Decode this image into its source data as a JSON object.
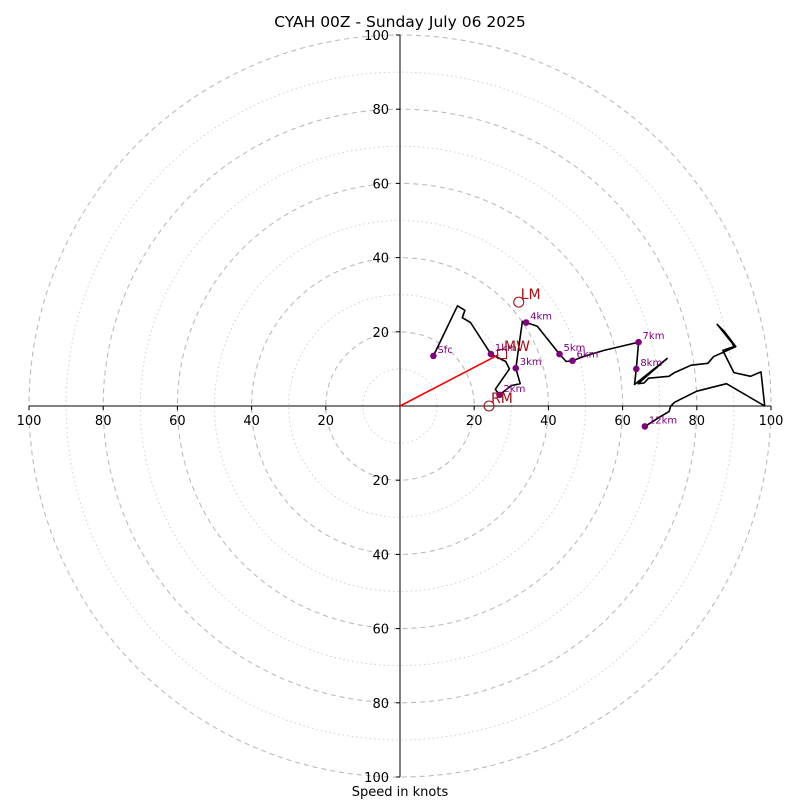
{
  "chart_data": {
    "type": "line",
    "title": "CYAH 00Z - Sunday July 06 2025",
    "xlabel": "Speed in knots",
    "ylabel": "",
    "xlim": [
      -100,
      100
    ],
    "ylim": [
      -100,
      100
    ],
    "rings": {
      "dashed_every": 20,
      "dotted_every": 10,
      "dashed_color": "#bbbbbb",
      "dotted_color": "#cccccc"
    },
    "tick_labels": {
      "left": [
        "100",
        "80",
        "60",
        "40",
        "20"
      ],
      "right": [
        "20",
        "40",
        "60",
        "80",
        "100"
      ],
      "top": [
        "20",
        "40",
        "60",
        "80",
        "100"
      ],
      "bottom": [
        "20",
        "40",
        "60",
        "80",
        "100"
      ]
    },
    "hodograph": {
      "color": "#000000",
      "points": [
        [
          9,
          13.5
        ],
        [
          15.5,
          27
        ],
        [
          17.5,
          25.8
        ],
        [
          16.8,
          23.8
        ],
        [
          19,
          22.5
        ],
        [
          24.5,
          14
        ],
        [
          28.5,
          12
        ],
        [
          29.5,
          10
        ],
        [
          25.7,
          4.5
        ],
        [
          26.8,
          3
        ],
        [
          30,
          5.5
        ],
        [
          32.4,
          6
        ],
        [
          31.2,
          10.2
        ],
        [
          33,
          22.8
        ],
        [
          34,
          22.5
        ],
        [
          37,
          21.5
        ],
        [
          43,
          14
        ],
        [
          44.8,
          12
        ],
        [
          46.5,
          12.2
        ],
        [
          50,
          13.5
        ],
        [
          55,
          15
        ],
        [
          64.3,
          17.2
        ],
        [
          63.7,
          10
        ],
        [
          63.2,
          5.8
        ],
        [
          72,
          12.8
        ],
        [
          67,
          8.5
        ],
        [
          64.2,
          6
        ],
        [
          65.8,
          6.2
        ],
        [
          67,
          7.5
        ],
        [
          72.5,
          8
        ],
        [
          74,
          9
        ],
        [
          78.5,
          11
        ],
        [
          83,
          11.5
        ],
        [
          84.5,
          13.3
        ],
        [
          90.5,
          16
        ],
        [
          87.5,
          20
        ],
        [
          85.5,
          22
        ],
        [
          89.5,
          17
        ],
        [
          90,
          16
        ],
        [
          87,
          15
        ],
        [
          90,
          9
        ],
        [
          94.5,
          8
        ],
        [
          97.3,
          9.2
        ],
        [
          98.3,
          0
        ],
        [
          88,
          6
        ],
        [
          80,
          4
        ],
        [
          74,
          1
        ],
        [
          73,
          0
        ],
        [
          72.5,
          -1.5
        ],
        [
          70,
          -3
        ],
        [
          66,
          -5.5
        ]
      ]
    },
    "height_markers": {
      "color": "#800080",
      "points": [
        {
          "label": "Sfc",
          "x": 9,
          "y": 13.5
        },
        {
          "label": "1km",
          "x": 24.5,
          "y": 14
        },
        {
          "label": "2km",
          "x": 26.8,
          "y": 3
        },
        {
          "label": "3km",
          "x": 31.2,
          "y": 10.2
        },
        {
          "label": "4km",
          "x": 34,
          "y": 22.5
        },
        {
          "label": "5km",
          "x": 43,
          "y": 14
        },
        {
          "label": "6km",
          "x": 46.5,
          "y": 12.2
        },
        {
          "label": "7km",
          "x": 64.3,
          "y": 17.2
        },
        {
          "label": "8km",
          "x": 63.7,
          "y": 10
        },
        {
          "label": "12km",
          "x": 66,
          "y": -5.5
        }
      ]
    },
    "motion_markers": {
      "color": "#a50f15",
      "items": [
        {
          "label": "LM",
          "x": 32,
          "y": 28,
          "shape": "circle"
        },
        {
          "label": "MW",
          "x": 27.5,
          "y": 14,
          "shape": "square"
        },
        {
          "label": "RM",
          "x": 24,
          "y": 0,
          "shape": "circle"
        }
      ]
    },
    "shear_vector": {
      "color": "#ff0000",
      "from": [
        0,
        0
      ],
      "to": [
        26.5,
        13.8
      ]
    }
  }
}
